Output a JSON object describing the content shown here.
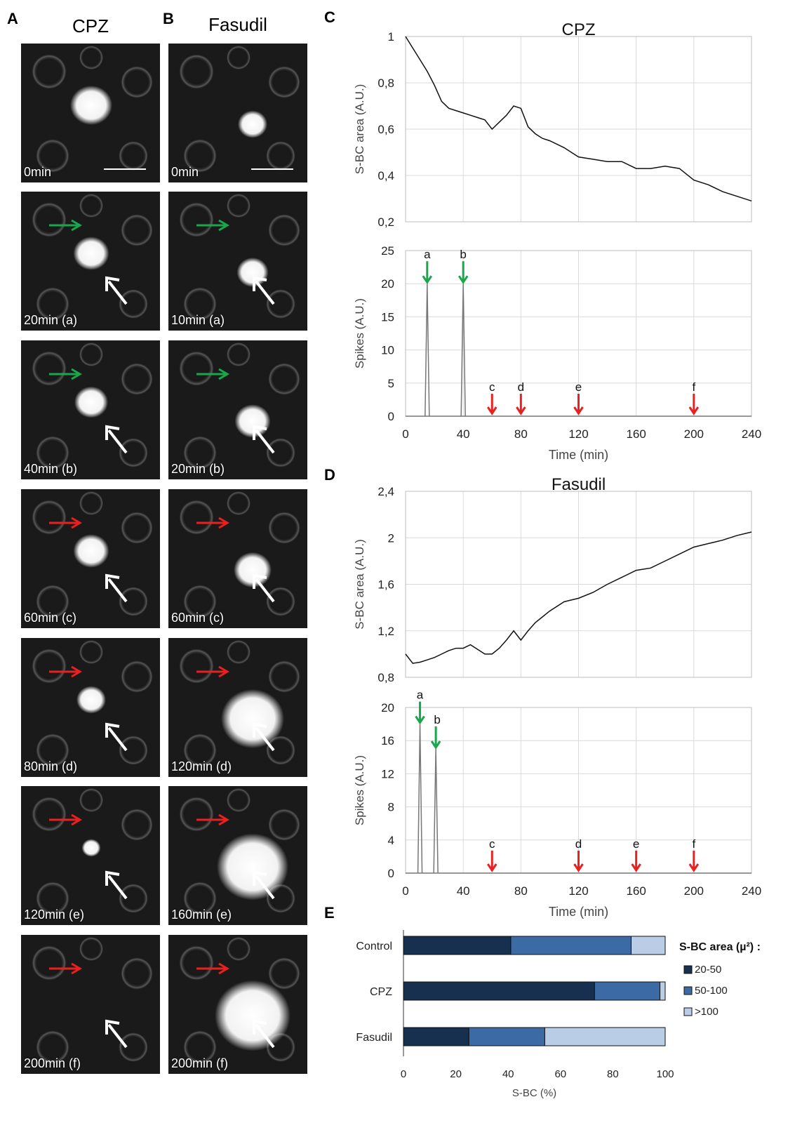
{
  "panels": {
    "A": {
      "label": "A",
      "title": "CPZ"
    },
    "B": {
      "label": "B",
      "title": "Fasudil"
    },
    "C": {
      "label": "C"
    },
    "D": {
      "label": "D"
    },
    "E": {
      "label": "E"
    }
  },
  "micrographs_A": [
    {
      "label": "0min",
      "arrow": "none"
    },
    {
      "label": "20min (a)",
      "arrow": "green"
    },
    {
      "label": "40min (b)",
      "arrow": "green"
    },
    {
      "label": "60min (c)",
      "arrow": "red"
    },
    {
      "label": "80min (d)",
      "arrow": "red"
    },
    {
      "label": "120min (e)",
      "arrow": "red"
    },
    {
      "label": "200min (f)",
      "arrow": "red"
    }
  ],
  "micrographs_B": [
    {
      "label": "0min",
      "arrow": "none"
    },
    {
      "label": "10min (a)",
      "arrow": "green"
    },
    {
      "label": "20min (b)",
      "arrow": "green"
    },
    {
      "label": "60min (c)",
      "arrow": "red"
    },
    {
      "label": "120min (d)",
      "arrow": "red"
    },
    {
      "label": "160min (e)",
      "arrow": "red"
    },
    {
      "label": "200min (f)",
      "arrow": "red"
    }
  ],
  "colors": {
    "green_arrow": "#1aa64a",
    "red_arrow": "#e8201f",
    "dark_bar": "#17304f",
    "mid_bar": "#3c6aa5",
    "light_bar": "#b9cde7"
  },
  "chart_data": [
    {
      "id": "C-area",
      "type": "line",
      "title": "CPZ",
      "ylabel": "S-BC area (A.U.)",
      "xlabel": "",
      "xlim": [
        0,
        240
      ],
      "ylim": [
        0.2,
        1
      ],
      "yticks": [
        "0,2",
        "0,4",
        "0,6",
        "0,8",
        "1"
      ],
      "grid": true,
      "x": [
        0,
        5,
        10,
        15,
        20,
        25,
        30,
        35,
        40,
        45,
        50,
        55,
        60,
        65,
        70,
        75,
        80,
        85,
        90,
        95,
        100,
        110,
        120,
        130,
        140,
        150,
        160,
        170,
        180,
        190,
        200,
        210,
        220,
        230,
        240
      ],
      "y": [
        1.0,
        0.95,
        0.9,
        0.85,
        0.79,
        0.72,
        0.69,
        0.68,
        0.67,
        0.66,
        0.65,
        0.64,
        0.6,
        0.63,
        0.66,
        0.7,
        0.69,
        0.61,
        0.58,
        0.56,
        0.55,
        0.52,
        0.48,
        0.47,
        0.46,
        0.46,
        0.43,
        0.43,
        0.44,
        0.43,
        0.38,
        0.36,
        0.33,
        0.31,
        0.29
      ]
    },
    {
      "id": "C-spikes",
      "type": "line",
      "title": "",
      "ylabel": "Spikes (A.U.)",
      "xlabel": "Time (min)",
      "xlim": [
        0,
        240
      ],
      "ylim": [
        0,
        25
      ],
      "xticks": [
        "0",
        "40",
        "80",
        "120",
        "160",
        "200",
        "240"
      ],
      "yticks": [
        "0",
        "5",
        "10",
        "15",
        "20",
        "25"
      ],
      "grid": true,
      "spikes": [
        {
          "x": 15,
          "y": 20
        },
        {
          "x": 40,
          "y": 20
        }
      ],
      "events": [
        {
          "label": "a",
          "x": 15,
          "color": "green"
        },
        {
          "label": "b",
          "x": 40,
          "color": "green"
        },
        {
          "label": "c",
          "x": 60,
          "color": "red"
        },
        {
          "label": "d",
          "x": 80,
          "color": "red"
        },
        {
          "label": "e",
          "x": 120,
          "color": "red"
        },
        {
          "label": "f",
          "x": 200,
          "color": "red"
        }
      ]
    },
    {
      "id": "D-area",
      "type": "line",
      "title": "Fasudil",
      "ylabel": "S-BC area (A.U.)",
      "xlabel": "",
      "xlim": [
        0,
        240
      ],
      "ylim": [
        0.8,
        2.4
      ],
      "yticks": [
        "0,8",
        "1,2",
        "1,6",
        "2",
        "2,4"
      ],
      "grid": true,
      "x": [
        0,
        5,
        10,
        15,
        20,
        25,
        30,
        35,
        40,
        45,
        50,
        55,
        60,
        65,
        70,
        75,
        80,
        85,
        90,
        95,
        100,
        110,
        120,
        130,
        140,
        150,
        160,
        170,
        180,
        190,
        200,
        210,
        220,
        230,
        240
      ],
      "y": [
        1.0,
        0.92,
        0.93,
        0.95,
        0.97,
        1.0,
        1.03,
        1.05,
        1.05,
        1.08,
        1.04,
        1.0,
        1.0,
        1.05,
        1.12,
        1.2,
        1.12,
        1.2,
        1.27,
        1.32,
        1.37,
        1.45,
        1.48,
        1.53,
        1.6,
        1.66,
        1.72,
        1.74,
        1.8,
        1.86,
        1.92,
        1.95,
        1.98,
        2.02,
        2.05
      ]
    },
    {
      "id": "D-spikes",
      "type": "line",
      "title": "",
      "ylabel": "Spikes (A.U.)",
      "xlabel": "Time (min)",
      "xlim": [
        0,
        240
      ],
      "ylim": [
        0,
        20
      ],
      "xticks": [
        "0",
        "40",
        "80",
        "120",
        "160",
        "200",
        "240"
      ],
      "yticks": [
        "0",
        "4",
        "8",
        "12",
        "16",
        "20"
      ],
      "grid": true,
      "spikes": [
        {
          "x": 10,
          "y": 18
        },
        {
          "x": 21,
          "y": 15
        }
      ],
      "events": [
        {
          "label": "a",
          "x": 10,
          "color": "green"
        },
        {
          "label": "b",
          "x": 21,
          "color": "green"
        },
        {
          "label": "c",
          "x": 60,
          "color": "red"
        },
        {
          "label": "d",
          "x": 120,
          "color": "red"
        },
        {
          "label": "e",
          "x": 160,
          "color": "red"
        },
        {
          "label": "f",
          "x": 200,
          "color": "red"
        }
      ]
    },
    {
      "id": "E-bars",
      "type": "bar",
      "orientation": "horizontal",
      "stacked": true,
      "categories": [
        "Control",
        "CPZ",
        "Fasudil"
      ],
      "series": [
        {
          "name": "20-50",
          "values": [
            41,
            73,
            25
          ]
        },
        {
          "name": "50-100",
          "values": [
            46,
            25,
            29
          ]
        },
        {
          "name": ">100",
          "values": [
            13,
            2,
            46
          ]
        }
      ],
      "xlabel": "S-BC (%)",
      "xlim": [
        0,
        100
      ],
      "xticks": [
        "0",
        "20",
        "40",
        "60",
        "80",
        "100"
      ],
      "legend_title": "S-BC area (µ²) :",
      "legend_position": "right",
      "grid": false
    }
  ]
}
